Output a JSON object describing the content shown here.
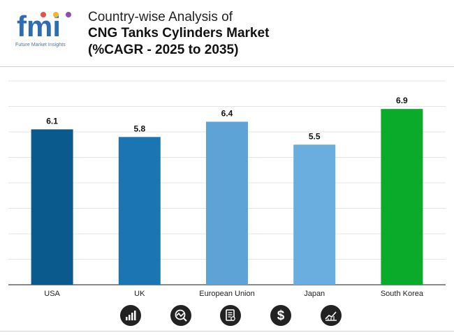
{
  "header": {
    "logo_text": "fmi",
    "logo_tagline": "Future Market Insights",
    "title_line1": "Country-wise Analysis of",
    "title_line2": "CNG Tanks Cylinders Market",
    "title_line3": "(%CAGR - 2025 to 2035)"
  },
  "colors": {
    "bar_colors": [
      "#0a5a8e",
      "#1a75b2",
      "#5ea3d6",
      "#6aaee0",
      "#0aaa2a"
    ],
    "grid": "#e4e4e4",
    "axis": "#444444",
    "logo_blue": "#2e6db4"
  },
  "footer": {
    "icons": [
      "bar-growth-icon",
      "analysis-gauge-icon",
      "report-document-icon",
      "dollar-icon",
      "trend-chart-icon"
    ]
  },
  "chart_data": {
    "type": "bar",
    "title": "CNG Tanks Cylinders Market (%CAGR - 2025 to 2035)",
    "categories": [
      "USA",
      "UK",
      "European Union",
      "Japan",
      "South Korea"
    ],
    "values": [
      6.1,
      5.8,
      6.4,
      5.5,
      6.9
    ],
    "data_labels": [
      "6.1",
      "5.8",
      "6.4",
      "5.5",
      "6.9"
    ],
    "xlabel": "",
    "ylabel": "",
    "ylim": [
      0,
      8
    ],
    "grid": true,
    "legend": "none"
  }
}
